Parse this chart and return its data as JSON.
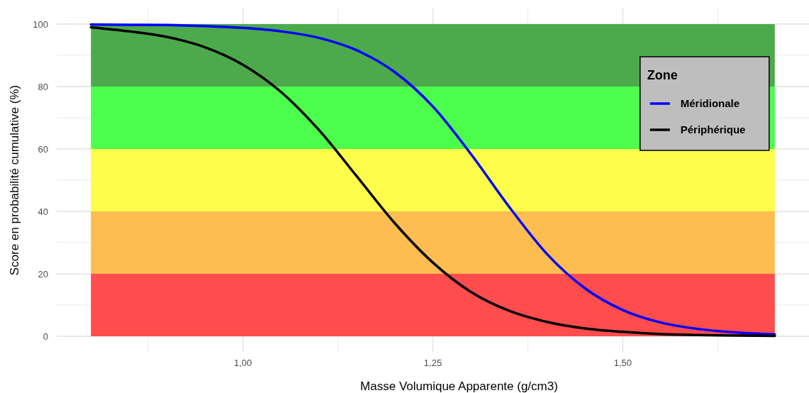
{
  "chart_data": {
    "type": "line",
    "xlabel": "Masse Volumique Apparente (g/cm3)",
    "ylabel": "Score en probabilité cumulative (%)",
    "legend_title": "Zone",
    "legend": "top right",
    "grid": true,
    "x": [
      0.8,
      0.85,
      0.9,
      0.95,
      1.0,
      1.05,
      1.1,
      1.15,
      1.2,
      1.25,
      1.3,
      1.35,
      1.4,
      1.45,
      1.5,
      1.55,
      1.6,
      1.65,
      1.7
    ],
    "series": [
      {
        "name": "Méridionale",
        "color": "#0000ff",
        "values": [
          99.9,
          99.8,
          99.7,
          99.4,
          98.8,
          97.7,
          95.6,
          91.6,
          84.6,
          73.6,
          58.4,
          41.6,
          26.4,
          15.4,
          8.4,
          4.4,
          2.3,
          1.2,
          0.6
        ]
      },
      {
        "name": "Périphérique",
        "color": "#000000",
        "values": [
          99,
          97.7,
          95.9,
          92.6,
          87,
          78.3,
          66.1,
          51.2,
          36.2,
          23.6,
          14.2,
          8.2,
          4.6,
          2.5,
          1.4,
          0.7,
          0.4,
          0.2,
          0.1
        ]
      }
    ],
    "bands": [
      {
        "axis": "y",
        "from": 0,
        "to": 20,
        "color": "#ff4c4c"
      },
      {
        "axis": "y",
        "from": 20,
        "to": 40,
        "color": "#fdbd50"
      },
      {
        "axis": "y",
        "from": 40,
        "to": 60,
        "color": "#fdfd4c"
      },
      {
        "axis": "y",
        "from": 60,
        "to": 80,
        "color": "#4cfd4c"
      },
      {
        "axis": "y",
        "from": 80,
        "to": 100,
        "color": "#4caa4c"
      }
    ],
    "xlim": [
      0.755,
      1.745
    ],
    "ylim": [
      -5,
      105
    ],
    "xticks": [
      {
        "value": 1,
        "label": "1,00"
      },
      {
        "value": 1.25,
        "label": "1,25"
      },
      {
        "value": 1.5,
        "label": "1,50"
      }
    ],
    "yticks": [
      0,
      20,
      40,
      60,
      80,
      100
    ]
  }
}
